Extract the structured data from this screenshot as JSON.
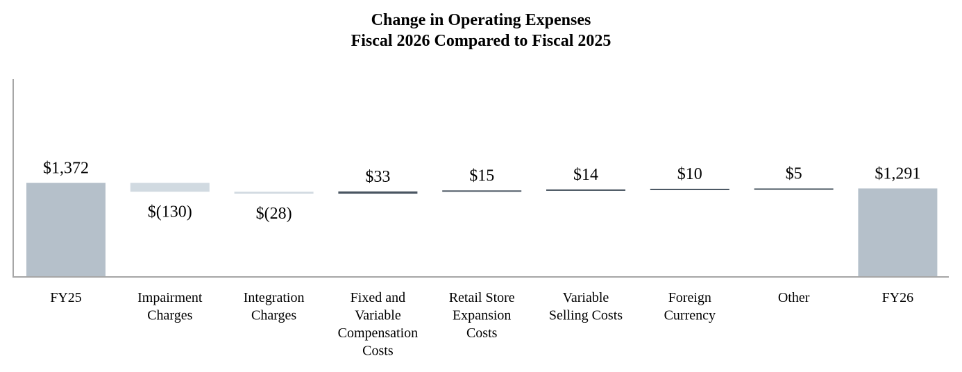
{
  "chart_data": {
    "type": "bar",
    "subtype": "waterfall",
    "title": "Change in Operating Expenses",
    "subtitle": "Fiscal 2026 Compared to Fiscal 2025",
    "categories": [
      [
        "FY25"
      ],
      [
        "Impairment",
        "Charges"
      ],
      [
        "Integration",
        "Charges"
      ],
      [
        "Fixed and",
        "Variable",
        "Compensation",
        "Costs"
      ],
      [
        "Retail Store",
        "Expansion",
        "Costs"
      ],
      [
        "Variable",
        "Selling Costs"
      ],
      [
        "Foreign",
        "Currency"
      ],
      [
        "Other"
      ],
      [
        "FY26"
      ]
    ],
    "values": [
      1372,
      -130,
      -28,
      33,
      15,
      14,
      10,
      5,
      1291
    ],
    "bar_kind": [
      "total",
      "delta",
      "delta",
      "delta",
      "delta",
      "delta",
      "delta",
      "delta",
      "total"
    ],
    "data_labels": [
      "$1,372",
      "$(130)",
      "$(28)",
      "$33",
      "$15",
      "$14",
      "$10",
      "$5",
      "$1,291"
    ],
    "ylim": [
      0,
      3000
    ],
    "grid": false,
    "legend": "none",
    "colors": {
      "total": "#b5c0ca",
      "decrease": "#d1dae1",
      "increase": "#4a5662",
      "axis": "#a6a6a6"
    }
  }
}
